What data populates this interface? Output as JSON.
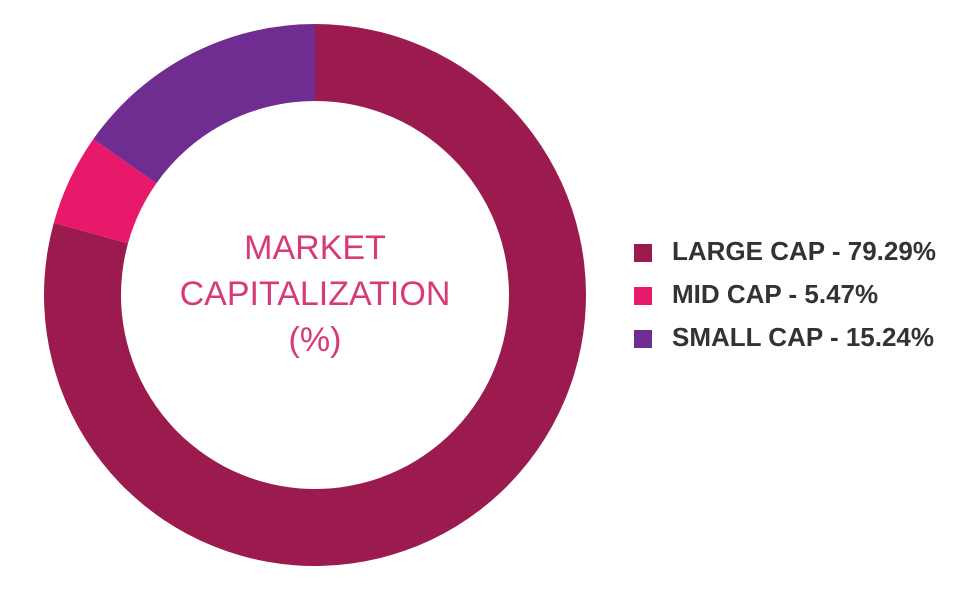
{
  "chart_data": {
    "type": "donut",
    "title_lines": [
      "MARKET",
      "CAPITALIZATION",
      "(%)"
    ],
    "categories": [
      "LARGE CAP - 79.29%",
      "MID CAP - 5.47%",
      "SMALL CAP - 15.24%"
    ],
    "values": [
      79.29,
      5.47,
      15.24
    ],
    "colors": [
      "#9b1b4f",
      "#e8186a",
      "#6f2c91"
    ],
    "legend": "right"
  }
}
